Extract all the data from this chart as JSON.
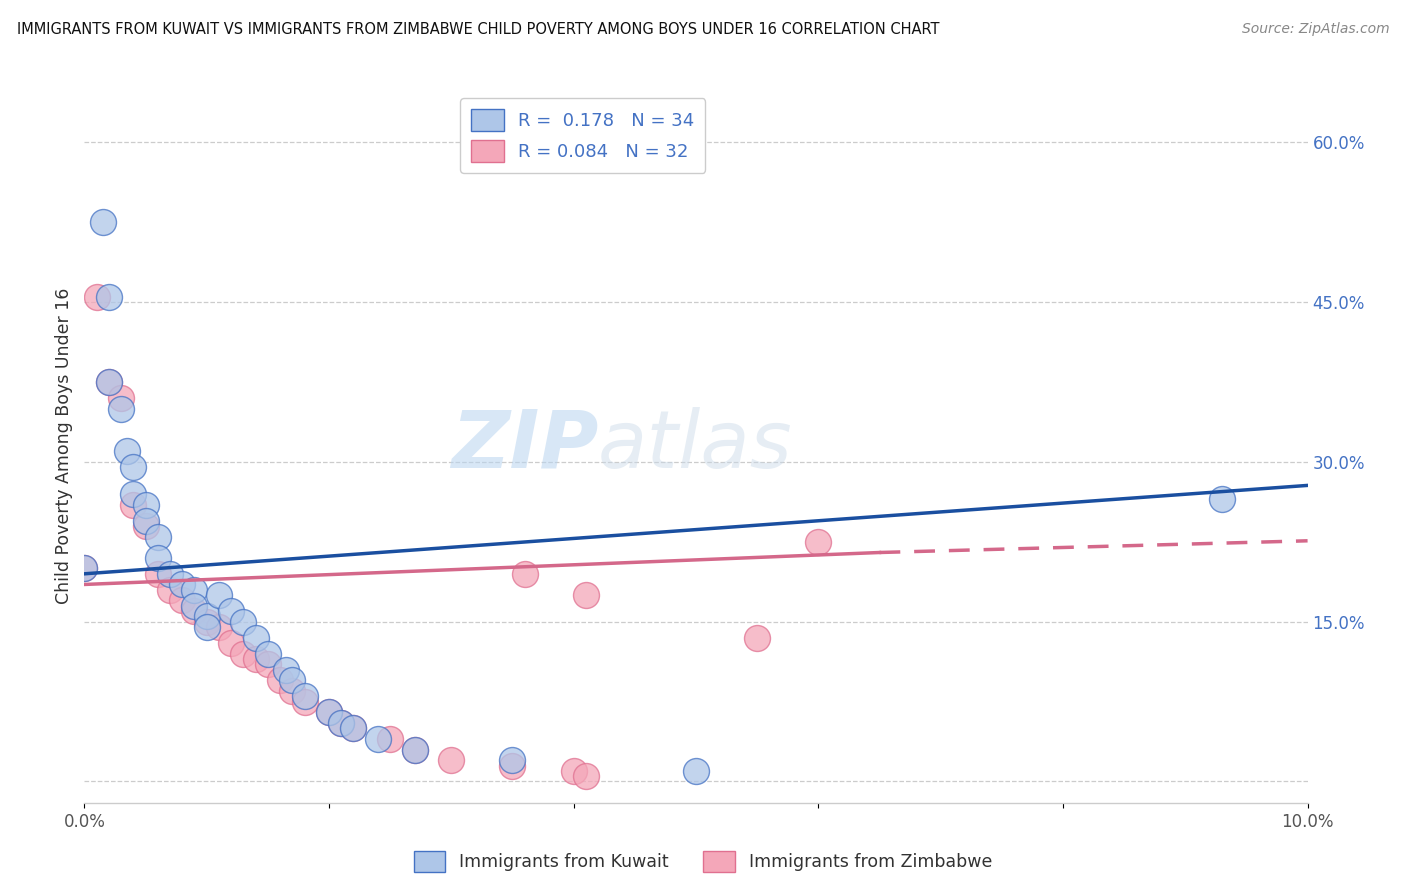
{
  "title": "IMMIGRANTS FROM KUWAIT VS IMMIGRANTS FROM ZIMBABWE CHILD POVERTY AMONG BOYS UNDER 16 CORRELATION CHART",
  "source": "Source: ZipAtlas.com",
  "ylabel": "Child Poverty Among Boys Under 16",
  "xlim": [
    0.0,
    0.1
  ],
  "ylim": [
    -0.02,
    0.65
  ],
  "xticks": [
    0.0,
    0.02,
    0.04,
    0.06,
    0.08,
    0.1
  ],
  "xtick_labels": [
    "0.0%",
    "",
    "",
    "",
    "",
    "10.0%"
  ],
  "yticks_right": [
    0.0,
    0.15,
    0.3,
    0.45,
    0.6
  ],
  "ytick_labels_right": [
    "",
    "15.0%",
    "30.0%",
    "45.0%",
    "60.0%"
  ],
  "watermark_zip": "ZIP",
  "watermark_atlas": "atlas",
  "kuwait_color": "#aec6e8",
  "zimbabwe_color": "#f4a7b9",
  "kuwait_edge_color": "#4472c4",
  "zimbabwe_edge_color": "#e07090",
  "kuwait_line_color": "#1a4fa0",
  "zimbabwe_line_color": "#d4688a",
  "kuwait_scatter": [
    [
      0.0015,
      0.525
    ],
    [
      0.002,
      0.455
    ],
    [
      0.002,
      0.375
    ],
    [
      0.003,
      0.35
    ],
    [
      0.0035,
      0.31
    ],
    [
      0.004,
      0.295
    ],
    [
      0.004,
      0.27
    ],
    [
      0.005,
      0.26
    ],
    [
      0.005,
      0.245
    ],
    [
      0.006,
      0.23
    ],
    [
      0.006,
      0.21
    ],
    [
      0.007,
      0.195
    ],
    [
      0.008,
      0.185
    ],
    [
      0.009,
      0.18
    ],
    [
      0.009,
      0.165
    ],
    [
      0.01,
      0.155
    ],
    [
      0.01,
      0.145
    ],
    [
      0.011,
      0.175
    ],
    [
      0.012,
      0.16
    ],
    [
      0.013,
      0.15
    ],
    [
      0.014,
      0.135
    ],
    [
      0.015,
      0.12
    ],
    [
      0.0165,
      0.105
    ],
    [
      0.017,
      0.095
    ],
    [
      0.018,
      0.08
    ],
    [
      0.02,
      0.065
    ],
    [
      0.021,
      0.055
    ],
    [
      0.022,
      0.05
    ],
    [
      0.024,
      0.04
    ],
    [
      0.027,
      0.03
    ],
    [
      0.035,
      0.02
    ],
    [
      0.05,
      0.01
    ],
    [
      0.0,
      0.2
    ],
    [
      0.093,
      0.265
    ]
  ],
  "zimbabwe_scatter": [
    [
      0.001,
      0.455
    ],
    [
      0.002,
      0.375
    ],
    [
      0.003,
      0.36
    ],
    [
      0.004,
      0.26
    ],
    [
      0.005,
      0.24
    ],
    [
      0.006,
      0.195
    ],
    [
      0.007,
      0.18
    ],
    [
      0.008,
      0.17
    ],
    [
      0.009,
      0.16
    ],
    [
      0.01,
      0.15
    ],
    [
      0.011,
      0.145
    ],
    [
      0.012,
      0.13
    ],
    [
      0.013,
      0.12
    ],
    [
      0.014,
      0.115
    ],
    [
      0.015,
      0.11
    ],
    [
      0.016,
      0.095
    ],
    [
      0.017,
      0.085
    ],
    [
      0.018,
      0.075
    ],
    [
      0.02,
      0.065
    ],
    [
      0.021,
      0.055
    ],
    [
      0.022,
      0.05
    ],
    [
      0.025,
      0.04
    ],
    [
      0.027,
      0.03
    ],
    [
      0.03,
      0.02
    ],
    [
      0.035,
      0.015
    ],
    [
      0.04,
      0.01
    ],
    [
      0.041,
      0.005
    ],
    [
      0.036,
      0.195
    ],
    [
      0.041,
      0.175
    ],
    [
      0.055,
      0.135
    ],
    [
      0.06,
      0.225
    ],
    [
      0.0,
      0.2
    ]
  ],
  "kuwait_trendline": [
    [
      0.0,
      0.195
    ],
    [
      0.1,
      0.278
    ]
  ],
  "zimbabwe_trendline_solid": [
    [
      0.0,
      0.185
    ],
    [
      0.065,
      0.215
    ]
  ],
  "zimbabwe_trendline_dashed": [
    [
      0.065,
      0.215
    ],
    [
      0.1,
      0.226
    ]
  ]
}
